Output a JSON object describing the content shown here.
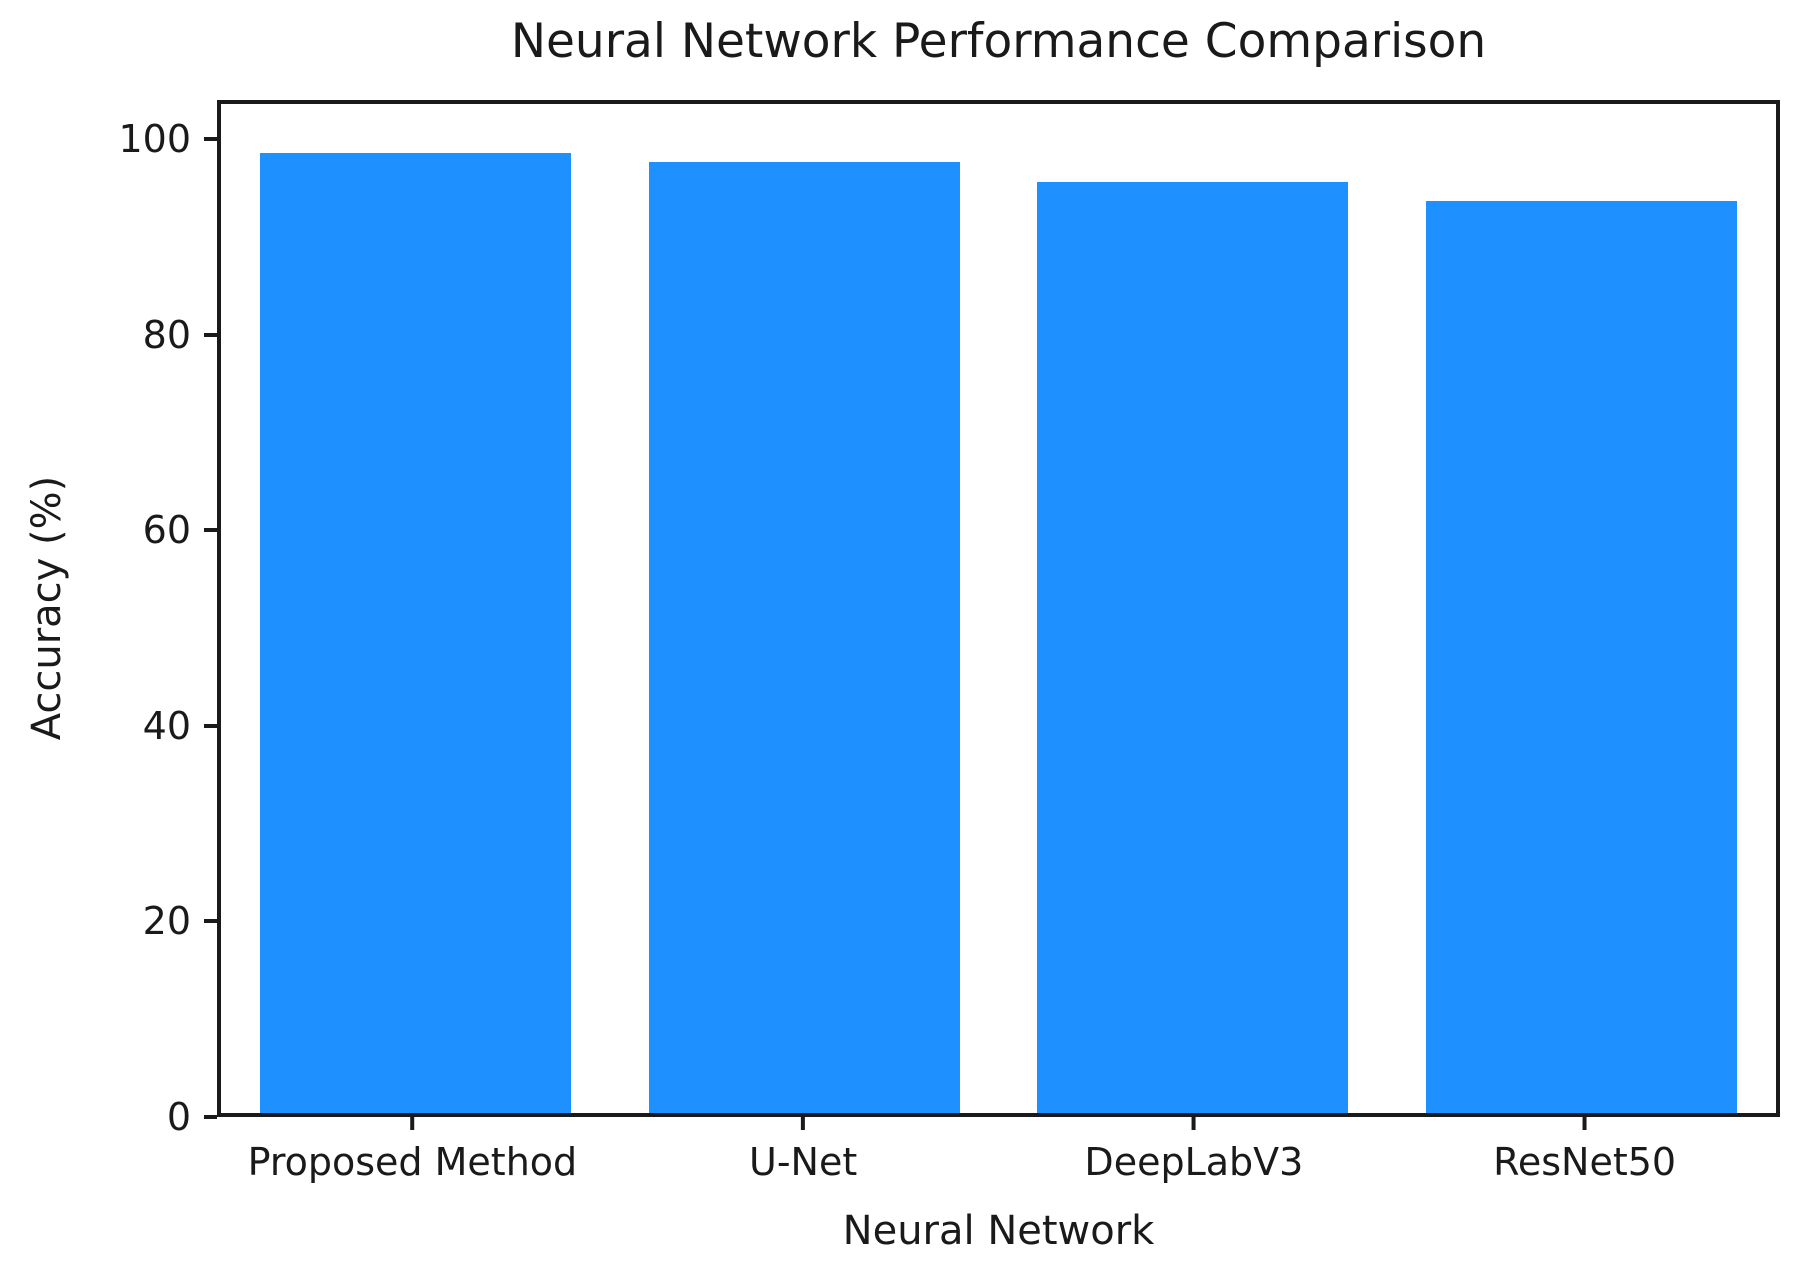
{
  "chart_data": {
    "type": "bar",
    "title": "Neural Network Performance Comparison",
    "xlabel": "Neural Network",
    "ylabel": "Accuracy (%)",
    "categories": [
      "Proposed Method",
      "U-Net",
      "DeepLabV3",
      "ResNet50"
    ],
    "values": [
      99,
      98,
      96,
      94
    ],
    "yticks": [
      0,
      20,
      40,
      60,
      80,
      100
    ],
    "ylim": [
      0,
      104
    ],
    "bar_width_fraction": 0.8,
    "grid": false,
    "legend": null,
    "colors": {
      "bar": "#1e90ff",
      "axis": "#1a1a1a",
      "background": "#ffffff"
    }
  }
}
